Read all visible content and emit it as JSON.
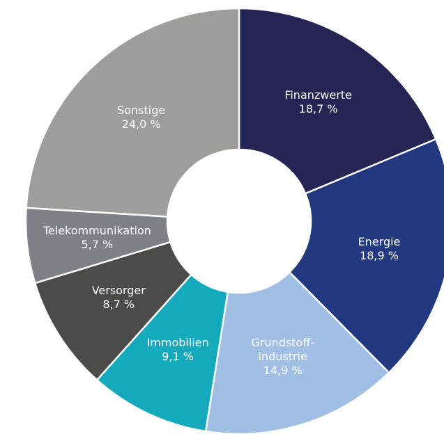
{
  "chart_data": {
    "type": "donut",
    "categories": [
      "Finanzwerte",
      "Energie",
      "Grundstoff-\nindustrie",
      "Immobilien",
      "Versorger",
      "Telekommunikation",
      "Sonstige"
    ],
    "values": [
      18.7,
      18.9,
      14.9,
      9.1,
      8.7,
      5.7,
      24.0
    ],
    "value_labels": [
      "18,7 %",
      "18,9 %",
      "14,9 %",
      "9,1 %",
      "8,7 %",
      "5,7 %",
      "24,0 %"
    ],
    "colors": [
      "#262454",
      "#22397f",
      "#a1bfe4",
      "#15a9bd",
      "#4b4b4a",
      "#7f8085",
      "#9d9d9c"
    ]
  }
}
